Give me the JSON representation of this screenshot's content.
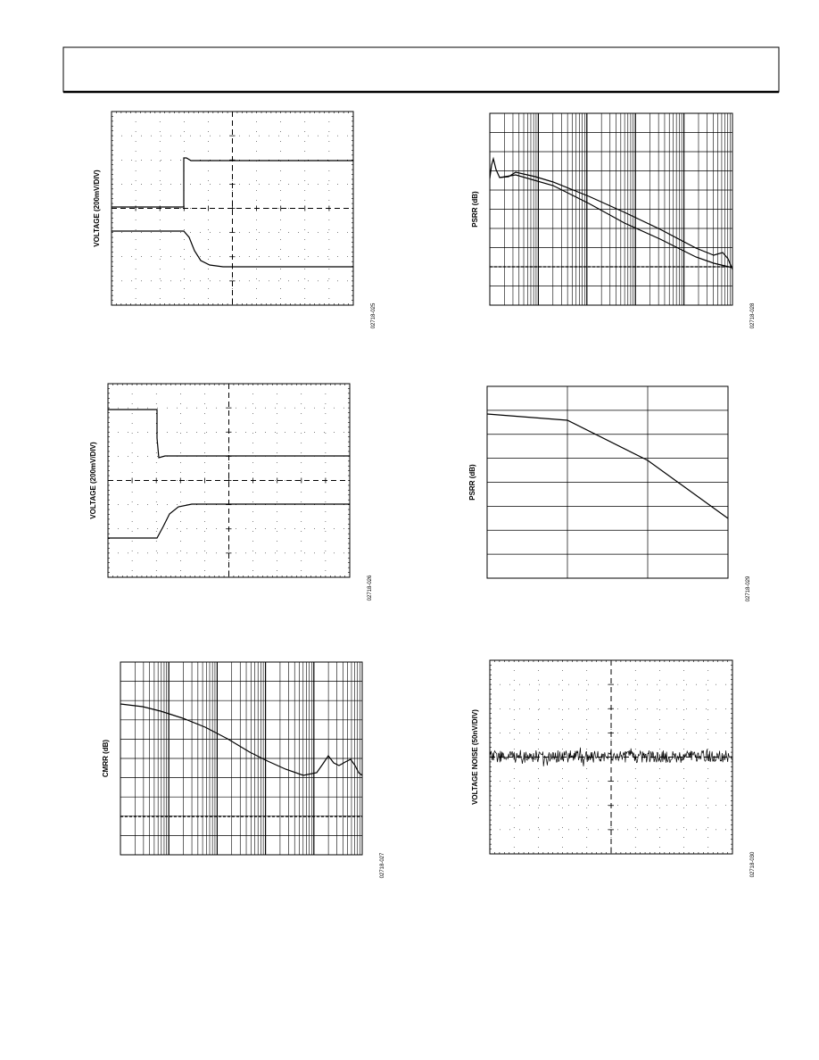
{
  "figures": [
    {
      "y_label": "VOLTAGE (200mV/DIV)",
      "code": "02718-025"
    },
    {
      "y_label": "PSRR (dB)",
      "code": "02718-028"
    },
    {
      "y_label": "VOLTAGE (200mV/DIV)",
      "code": "02718-026"
    },
    {
      "y_label": "PSRR (dB)",
      "code": "02718-029"
    },
    {
      "y_label": "CMRR (dB)",
      "code": "02718-027"
    },
    {
      "y_label": "VOLTAGE NOISE (50nV/DIV)",
      "code": "02718-030"
    }
  ]
}
